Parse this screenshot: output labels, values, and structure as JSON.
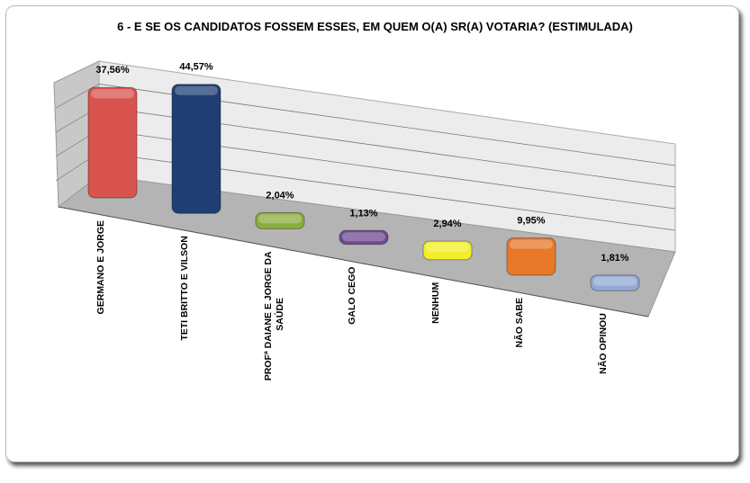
{
  "chart_data": {
    "type": "bar",
    "title": "6 - E SE OS CANDIDATOS FOSSEM ESSES, EM QUEM O(A) SR(A) VOTARIA? (ESTIMULADA)",
    "categories": [
      "GERMANO E JORGE",
      "TETI BRITTO E VILSON",
      "PROFª DAIANE E JORGE DA SAÚDE",
      "GALO CEGO",
      "NENHUM",
      "NÃO SABE",
      "NÃO OPINOU"
    ],
    "values": [
      37.56,
      44.57,
      2.04,
      1.13,
      2.94,
      9.95,
      1.81
    ],
    "labels": [
      "37,56%",
      "44,57%",
      "2,04%",
      "1,13%",
      "2,94%",
      "9,95%",
      "1,81%"
    ],
    "colors": [
      "#d9534f",
      "#1f3f73",
      "#8aae3c",
      "#6d4a8f",
      "#f2ef2a",
      "#e8782a",
      "#93a9d3"
    ],
    "xlabel": "",
    "ylabel": "",
    "grid": true,
    "legend": "none"
  }
}
